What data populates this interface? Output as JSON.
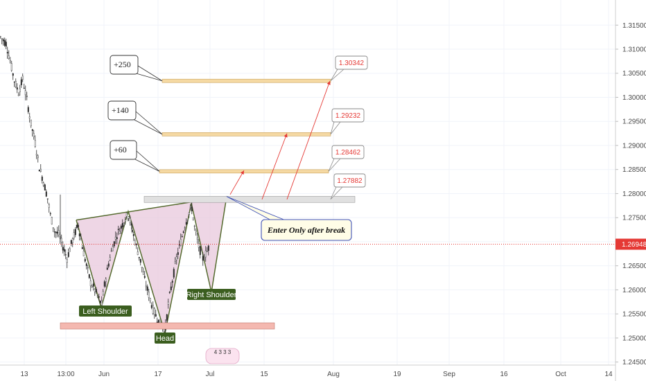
{
  "chart_data": {
    "type": "candlestick",
    "y_ticks": [
      "1.31500",
      "1.31000",
      "1.30500",
      "1.30000",
      "1.29500",
      "1.29000",
      "1.28500",
      "1.28000",
      "1.27500",
      "1.27000",
      "1.26500",
      "1.26000",
      "1.25500",
      "1.25000",
      "1.24500"
    ],
    "ylim": [
      1.2425,
      1.3195
    ],
    "x_ticks": [
      "13",
      "13:00",
      "Jun",
      "17",
      "Jul",
      "15",
      "Aug",
      "19",
      "Sep",
      "16",
      "Oct",
      "14"
    ],
    "current_price": "1.26948",
    "targets": [
      {
        "label": "+250",
        "price": "1.30342",
        "value": 1.30342
      },
      {
        "label": "+140",
        "price": "1.29232",
        "value": 1.29232
      },
      {
        "label": "+60",
        "price": "1.28462",
        "value": 1.28462
      },
      {
        "label": "",
        "price": "1.27882",
        "value": 1.27882
      }
    ],
    "neckline_zone": 1.2788,
    "head_zone": 1.2525,
    "pattern": {
      "left_shoulder": "Left Shoulder",
      "head": "Head",
      "right_shoulder": "Right Shoulder"
    },
    "note": "Enter Only after break",
    "watermark_digits": "4 3 3 3"
  },
  "colors": {
    "target_band": "#f5d9a3",
    "neck_band": "#e0e0e0",
    "head_band": "#f4b8b0",
    "pattern_fill": "#e8c8dc",
    "pattern_line": "#556b2f",
    "arrow": "#e53935",
    "price_line": "#e53935",
    "label_bg": "#3b5e1f",
    "note_border": "#3f51b5"
  }
}
